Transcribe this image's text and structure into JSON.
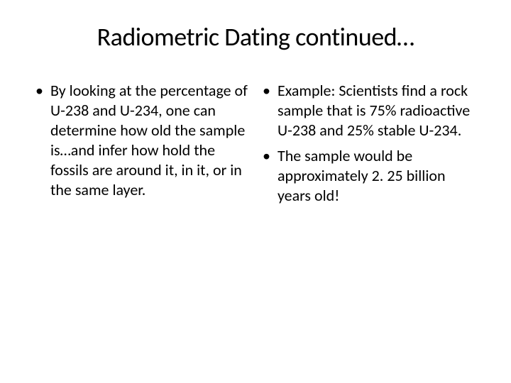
{
  "slide": {
    "title": "Radiometric Dating continued…",
    "title_fontsize": 36,
    "body_fontsize": 22,
    "background_color": "#ffffff",
    "text_color": "#000000",
    "bullet_char": "•",
    "columns": [
      {
        "items": [
          "By looking at the percentage of U-238 and U-234, one can determine how old the sample is…and infer how hold the fossils are around it, in it, or in the same layer."
        ]
      },
      {
        "items": [
          "Example:  Scientists find a rock sample that is 75% radioactive U-238 and 25% stable U-234.",
          "The sample would be approximately 2. 25 billion years old!"
        ]
      }
    ]
  }
}
